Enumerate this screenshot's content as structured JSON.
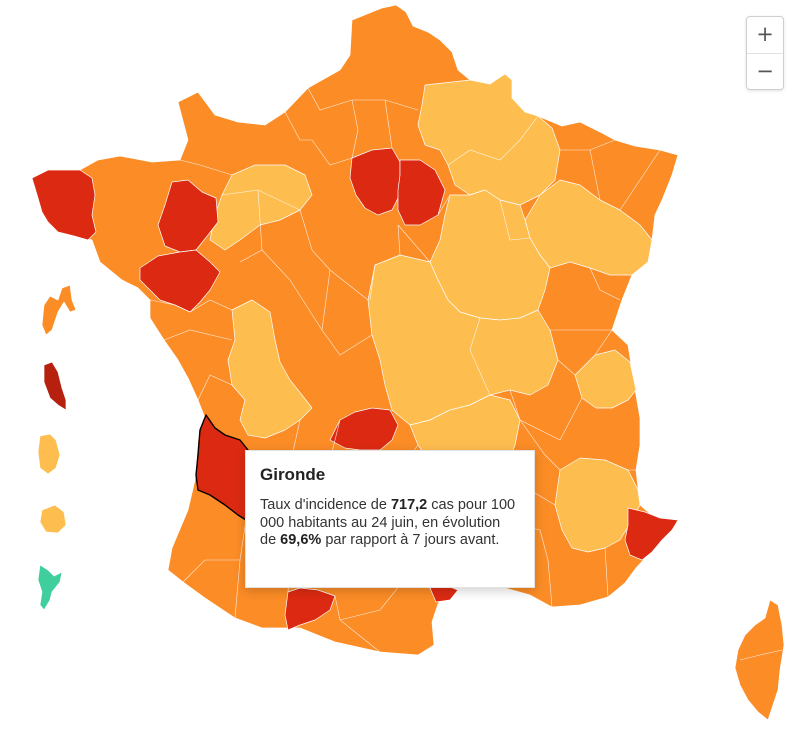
{
  "map": {
    "legend_colors": {
      "very_high": "#dc2a12",
      "dark_red": "#b5200f",
      "high": "#fb8c26",
      "medium": "#fdbd4f",
      "low": "#3ecf9c"
    }
  },
  "zoom": {
    "zoom_in_label": "+",
    "zoom_out_label": "−"
  },
  "tooltip": {
    "department": "Gironde",
    "line_prefix": "Taux d'incidence de ",
    "rate": "717,2",
    "line_middle": " cas pour 100 000 habitants au 24 juin, en évolution de ",
    "change": "69,6%",
    "line_suffix": " par rapport à 7 jours avant."
  }
}
